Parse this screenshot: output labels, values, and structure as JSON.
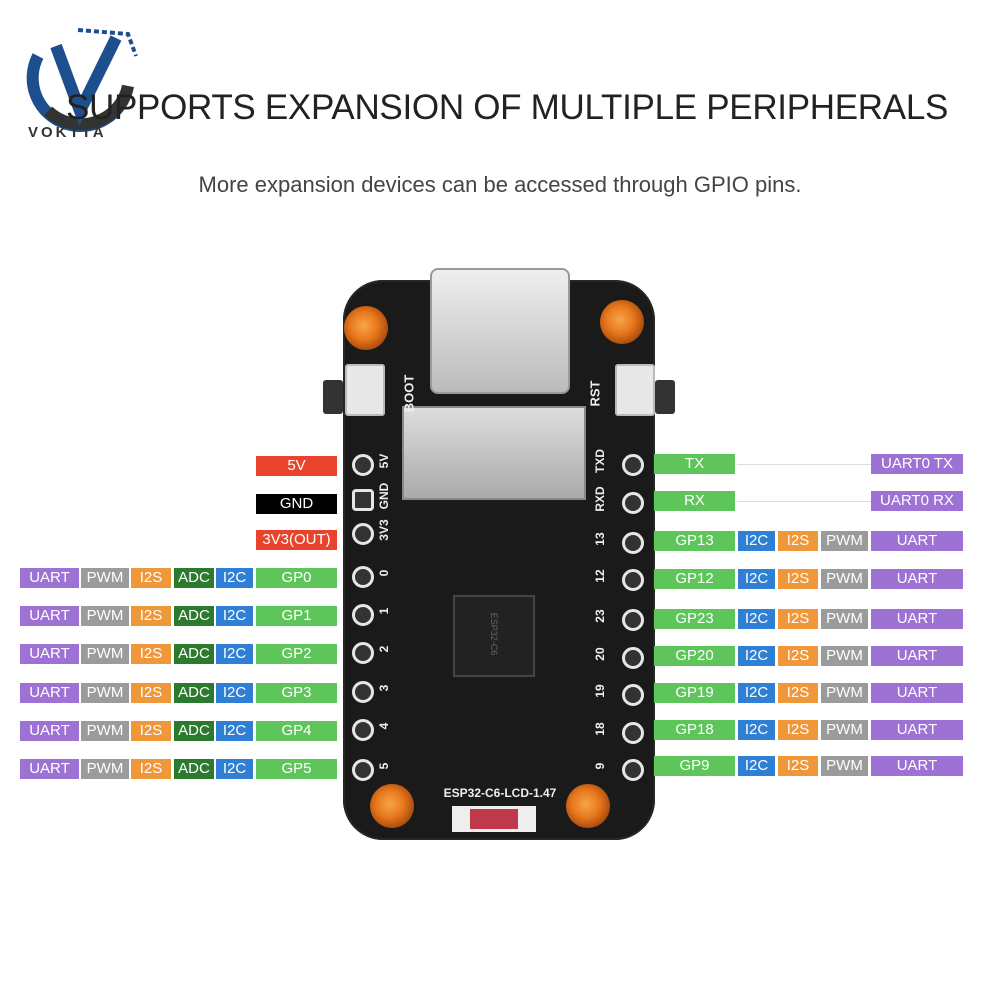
{
  "brand": {
    "name": "VOKTTA"
  },
  "header": {
    "title": "SUPPORTS EXPANSION OF MULTIPLE PERIPHERALS",
    "subtitle": "More expansion devices can be accessed through GPIO pins."
  },
  "board": {
    "model": "ESP32-C6-LCD-1.47",
    "chip_marking": "ESP32-C6",
    "button_boot": "BOOT",
    "button_rst": "RST",
    "left_silk": [
      "5V",
      "GND",
      "3V3",
      "0",
      "1",
      "2",
      "3",
      "4",
      "5"
    ],
    "right_silk": [
      "TXD",
      "RXD",
      "13",
      "12",
      "23",
      "20",
      "19",
      "18",
      "9"
    ]
  },
  "colors": {
    "UART": "#9d72d4",
    "PWM": "#9b9b9b",
    "I2S": "#f0973a",
    "ADC": "#2b7a2e",
    "I2C": "#2f7fd4",
    "GP": "#5ec55b",
    "5V": "#e8432c",
    "GND": "#000000",
    "3V3": "#e8432c"
  },
  "left_pins": [
    {
      "pin": "5V",
      "tags": []
    },
    {
      "pin": "GND",
      "tags": []
    },
    {
      "pin": "3V3(OUT)",
      "tags": []
    },
    {
      "pin": "GP0",
      "tags": [
        "UART",
        "PWM",
        "I2S",
        "ADC",
        "I2C"
      ]
    },
    {
      "pin": "GP1",
      "tags": [
        "UART",
        "PWM",
        "I2S",
        "ADC",
        "I2C"
      ]
    },
    {
      "pin": "GP2",
      "tags": [
        "UART",
        "PWM",
        "I2S",
        "ADC",
        "I2C"
      ]
    },
    {
      "pin": "GP3",
      "tags": [
        "UART",
        "PWM",
        "I2S",
        "ADC",
        "I2C"
      ]
    },
    {
      "pin": "GP4",
      "tags": [
        "UART",
        "PWM",
        "I2S",
        "ADC",
        "I2C"
      ]
    },
    {
      "pin": "GP5",
      "tags": [
        "UART",
        "PWM",
        "I2S",
        "ADC",
        "I2C"
      ]
    }
  ],
  "right_pins": [
    {
      "pin": "TX",
      "tags": [],
      "func": "UART0 TX"
    },
    {
      "pin": "RX",
      "tags": [],
      "func": "UART0 RX"
    },
    {
      "pin": "GP13",
      "tags": [
        "I2C",
        "I2S",
        "PWM"
      ],
      "func": "UART"
    },
    {
      "pin": "GP12",
      "tags": [
        "I2C",
        "I2S",
        "PWM"
      ],
      "func": "UART"
    },
    {
      "pin": "GP23",
      "tags": [
        "I2C",
        "I2S",
        "PWM"
      ],
      "func": "UART"
    },
    {
      "pin": "GP20",
      "tags": [
        "I2C",
        "I2S",
        "PWM"
      ],
      "func": "UART"
    },
    {
      "pin": "GP19",
      "tags": [
        "I2C",
        "I2S",
        "PWM"
      ],
      "func": "UART"
    },
    {
      "pin": "GP18",
      "tags": [
        "I2C",
        "I2S",
        "PWM"
      ],
      "func": "UART"
    },
    {
      "pin": "GP9",
      "tags": [
        "I2C",
        "I2S",
        "PWM"
      ],
      "func": "UART"
    }
  ]
}
